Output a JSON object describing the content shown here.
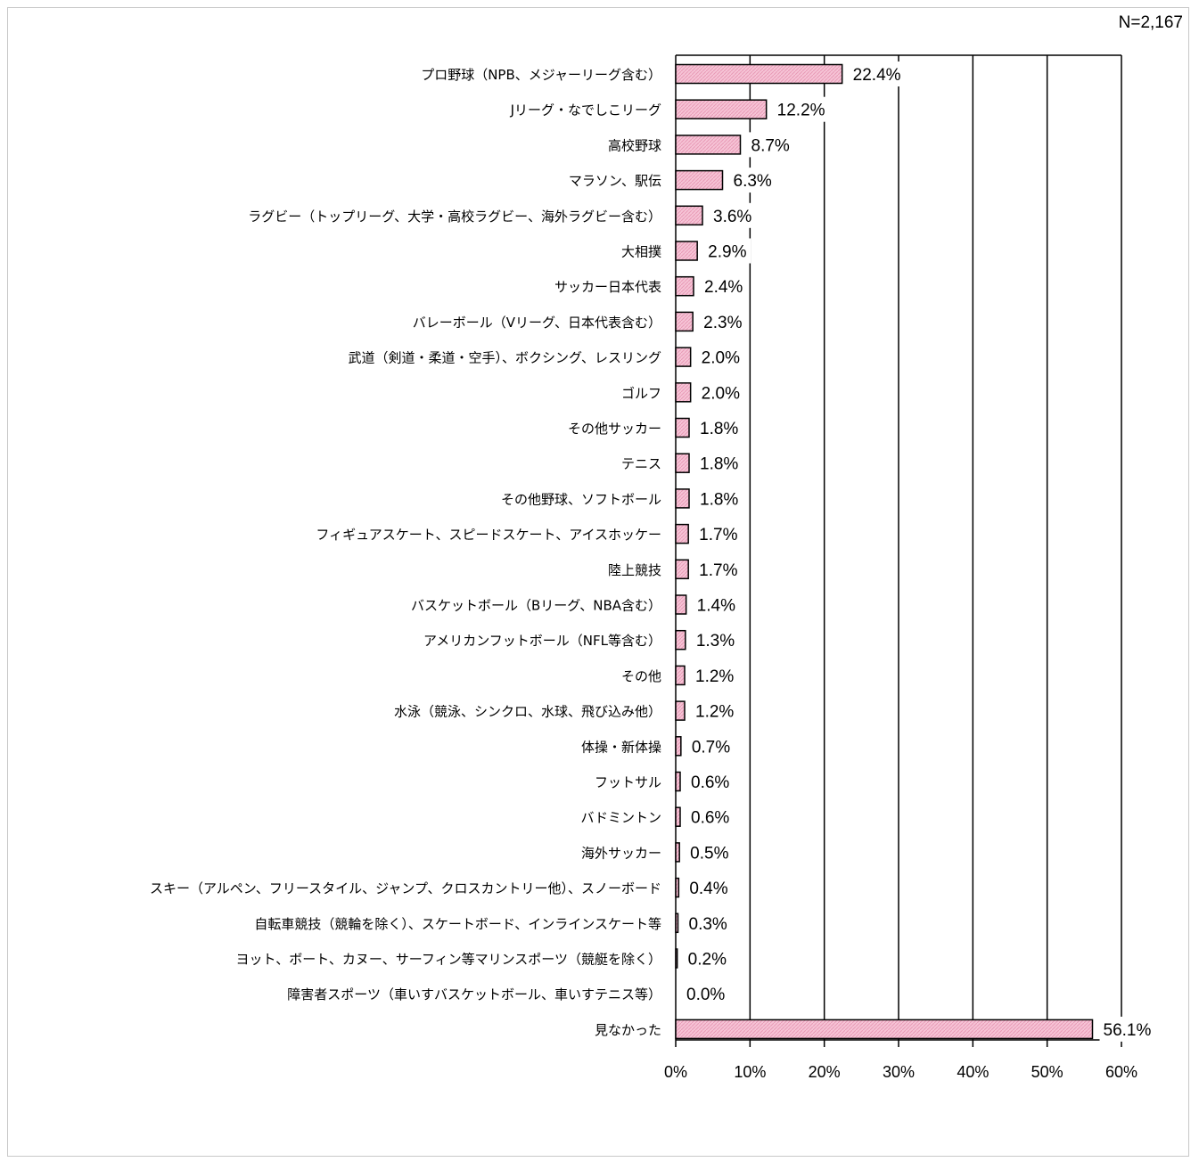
{
  "sample_size": "N=2,167",
  "colors": {
    "bar_fill": "#f6c4d6",
    "bar_stroke": "#000000",
    "grid": "#000000"
  },
  "chart_data": {
    "type": "bar",
    "orientation": "horizontal",
    "categories": [
      "プロ野球（NPB、メジャーリーグ含む）",
      "Jリーグ・なでしこリーグ",
      "高校野球",
      "マラソン、駅伝",
      "ラグビー（トップリーグ、大学・高校ラグビー、海外ラグビー含む）",
      "大相撲",
      "サッカー日本代表",
      "バレーボール（Vリーグ、日本代表含む）",
      "武道（剣道・柔道・空手）、ボクシング、レスリング",
      "ゴルフ",
      "その他サッカー",
      "テニス",
      "その他野球、ソフトボール",
      "フィギュアスケート、スピードスケート、アイスホッケー",
      "陸上競技",
      "バスケットボール（Bリーグ、NBA含む）",
      "アメリカンフットボール（NFL等含む）",
      "その他",
      "水泳（競泳、シンクロ、水球、飛び込み他）",
      "体操・新体操",
      "フットサル",
      "バドミントン",
      "海外サッカー",
      "スキー（アルペン、フリースタイル、ジャンプ、クロスカントリー他）、スノーボード",
      "自転車競技（競輪を除く）、スケートボード、インラインスケート等",
      "ヨット、ボート、カヌー、サーフィン等マリンスポーツ（競艇を除く）",
      "障害者スポーツ（車いすバスケットボール、車いすテニス等）",
      "見なかった"
    ],
    "values": [
      22.4,
      12.2,
      8.7,
      6.3,
      3.6,
      2.9,
      2.4,
      2.3,
      2.0,
      2.0,
      1.8,
      1.8,
      1.8,
      1.7,
      1.7,
      1.4,
      1.3,
      1.2,
      1.2,
      0.7,
      0.6,
      0.6,
      0.5,
      0.4,
      0.3,
      0.2,
      0.0,
      56.1
    ],
    "value_labels": [
      "22.4%",
      "12.2%",
      "8.7%",
      "6.3%",
      "3.6%",
      "2.9%",
      "2.4%",
      "2.3%",
      "2.0%",
      "2.0%",
      "1.8%",
      "1.8%",
      "1.8%",
      "1.7%",
      "1.7%",
      "1.4%",
      "1.3%",
      "1.2%",
      "1.2%",
      "0.7%",
      "0.6%",
      "0.6%",
      "0.5%",
      "0.4%",
      "0.3%",
      "0.2%",
      "0.0%",
      "56.1%"
    ],
    "xlim": [
      0,
      60
    ],
    "xticks": [
      "0%",
      "10%",
      "20%",
      "30%",
      "40%",
      "50%",
      "60%"
    ],
    "grid": true
  }
}
